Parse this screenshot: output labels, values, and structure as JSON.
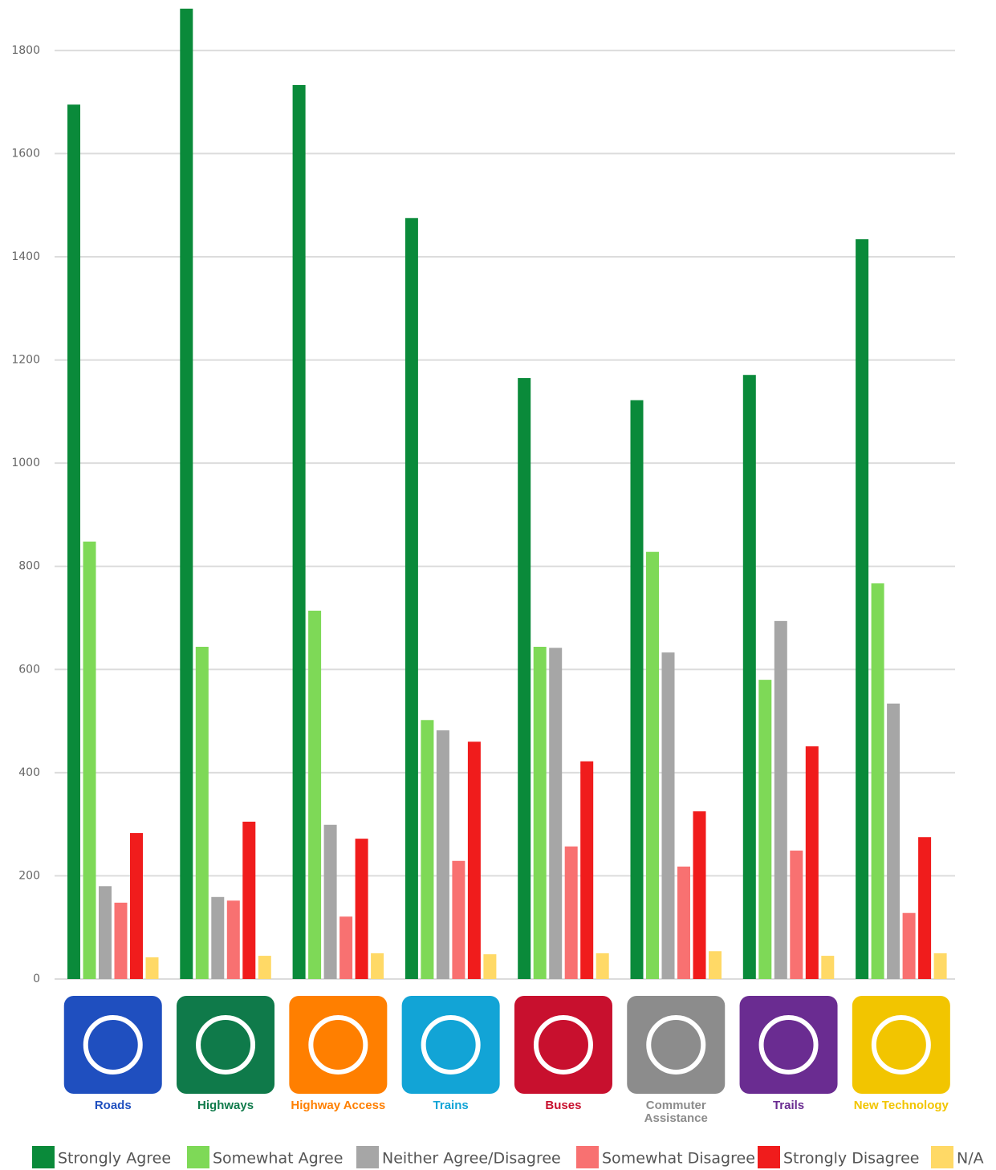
{
  "chart_data": {
    "type": "bar",
    "categories": [
      "Roads",
      "Highways",
      "Highway Access",
      "Trains",
      "Buses",
      "Commuter Assistance",
      "Trails",
      "New Technology"
    ],
    "category_colors": [
      "#1f4fbf",
      "#0f7a4a",
      "#ff7f00",
      "#12a4d6",
      "#c8102e",
      "#8c8c8c",
      "#6a2c91",
      "#f2c500"
    ],
    "series": [
      {
        "name": "Strongly Agree",
        "color": "#0a8a3a",
        "values": [
          1695,
          1881,
          1733,
          1475,
          1165,
          1122,
          1171,
          1434
        ]
      },
      {
        "name": "Somewhat Agree",
        "color": "#7ed957",
        "values": [
          848,
          644,
          714,
          502,
          644,
          828,
          580,
          767
        ]
      },
      {
        "name": "Neither Agree/Disagree",
        "color": "#a6a6a6",
        "values": [
          180,
          159,
          299,
          482,
          642,
          633,
          694,
          534
        ]
      },
      {
        "name": "Somewhat Disagree",
        "color": "#f87171",
        "values": [
          148,
          152,
          121,
          229,
          257,
          218,
          249,
          128
        ]
      },
      {
        "name": "Strongly Disagree",
        "color": "#f01c1c",
        "values": [
          283,
          305,
          272,
          460,
          422,
          325,
          451,
          275
        ]
      },
      {
        "name": "N/A",
        "color": "#ffd966",
        "values": [
          42,
          45,
          50,
          48,
          50,
          54,
          45,
          50
        ]
      }
    ],
    "ylim": [
      0,
      1890
    ],
    "yticks": [
      0,
      200,
      400,
      600,
      800,
      1000,
      1200,
      1400,
      1600,
      1800
    ],
    "grid": true
  }
}
